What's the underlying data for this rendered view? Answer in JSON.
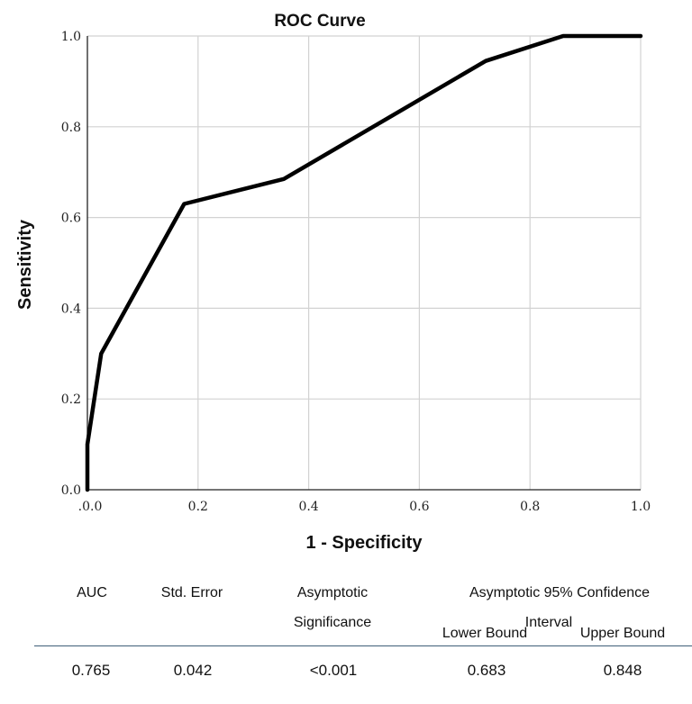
{
  "chart_data": {
    "type": "line",
    "title": "ROC Curve",
    "xlabel": "1 - Specificity",
    "ylabel": "Sensitivity",
    "xlim": [
      0.0,
      1.0
    ],
    "ylim": [
      0.0,
      1.0
    ],
    "grid": true,
    "x_ticks": [
      ".0.0",
      "0.2",
      "0.4",
      "0.6",
      "0.8",
      "1.0"
    ],
    "y_ticks": [
      "0.0",
      "0.2",
      "0.4",
      "0.6",
      "0.8",
      "1.0"
    ],
    "series": [
      {
        "x": [
          0.0,
          0.0,
          0.025,
          0.175,
          0.355,
          0.72,
          0.86,
          1.0
        ],
        "y": [
          0.0,
          0.1,
          0.3,
          0.63,
          0.685,
          0.945,
          1.0,
          1.0
        ]
      }
    ]
  },
  "table": {
    "headers": {
      "auc": "AUC",
      "std_error": "Std. Error",
      "asym_sig_line1": "Asymptotic",
      "asym_sig_line2": "Significance",
      "ci_line1": "Asymptotic 95% Confidence",
      "ci_line2": "Interval",
      "lower": "Lower Bound",
      "upper": "Upper Bound"
    },
    "values": {
      "auc": "0.765",
      "std_error": "0.042",
      "asym_sig": "<0.001",
      "lower": "0.683",
      "upper": "0.848"
    }
  }
}
